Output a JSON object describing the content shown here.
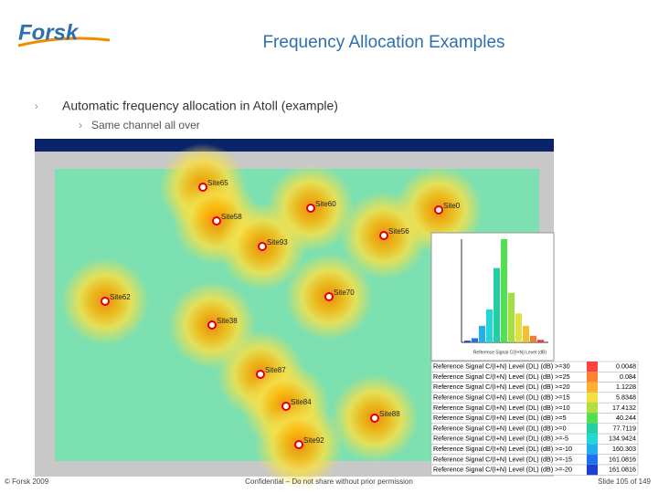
{
  "header": {
    "logo": "Forsk",
    "title": "Frequency Allocation Examples"
  },
  "bullets": [
    {
      "text": "Automatic frequency allocation in Atoll (example)",
      "sub": [
        "Same channel all over"
      ]
    }
  ],
  "map": {
    "sites": [
      "Site65",
      "Site60",
      "Site0",
      "Site58",
      "Site56",
      "Site93",
      "Site62",
      "Site70",
      "Site38",
      "Site87",
      "Site84",
      "Site88",
      "Site92"
    ]
  },
  "histogram": {
    "xlabel": "Reference Signal C/(I+N) Level (dB)",
    "values": [
      2,
      5,
      20,
      40,
      90,
      125,
      60,
      35,
      20,
      8,
      3
    ]
  },
  "table": {
    "rows": [
      [
        "Reference Signal C/(I+N) Level (DL) (dB) >=30",
        0.0048
      ],
      [
        "Reference Signal C/(I+N) Level (DL) (dB) >=25",
        0.084
      ],
      [
        "Reference Signal C/(I+N) Level (DL) (dB) >=20",
        1.1228
      ],
      [
        "Reference Signal C/(I+N) Level (DL) (dB) >=15",
        5.8348
      ],
      [
        "Reference Signal C/(I+N) Level (DL) (dB) >=10",
        17.4132
      ],
      [
        "Reference Signal C/(I+N) Level (DL) (dB) >=5",
        40.244
      ],
      [
        "Reference Signal C/(I+N) Level (DL) (dB) >=0",
        77.7119
      ],
      [
        "Reference Signal C/(I+N) Level (DL) (dB) >=-5",
        134.9424
      ],
      [
        "Reference Signal C/(I+N) Level (DL) (dB) >=-10",
        160.303
      ],
      [
        "Reference Signal C/(I+N) Level (DL) (dB) >=-15",
        161.0816
      ],
      [
        "Reference Signal C/(I+N) Level (DL) (dB) >=-20",
        161.0816
      ]
    ]
  },
  "footer": {
    "left": "© Forsk 2009",
    "center": "Confidential – Do not share without prior permission",
    "right": "Slide 105 of 149"
  }
}
